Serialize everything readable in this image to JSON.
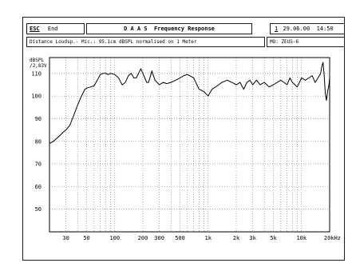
{
  "header": {
    "esc_key": "ESC",
    "end_label": "End",
    "title": "D A A S  Frequency Response",
    "date_marker": "1",
    "datetime": "29.06.00  14:50"
  },
  "info": {
    "description": "Distance Loudsp.- Mic.: 95.1cm dBSPL normalised on 1 Meter",
    "model": "MO: ZEUS-6"
  },
  "chart_data": {
    "type": "line",
    "title": "",
    "xlabel": "",
    "ylabel": "dBSPL /2,83V",
    "ylabel_lines": [
      "dBSPL",
      "/2,83V"
    ],
    "x_unit": "kHz",
    "x_scale": "log",
    "xlim": [
      20,
      20000
    ],
    "ylim": [
      40,
      117
    ],
    "grid": true,
    "y_ticks": [
      50,
      60,
      70,
      80,
      90,
      100,
      110
    ],
    "x_ticks": [
      {
        "value": 30,
        "label": "30"
      },
      {
        "value": 50,
        "label": "50"
      },
      {
        "value": 100,
        "label": "100"
      },
      {
        "value": 200,
        "label": "200"
      },
      {
        "value": 300,
        "label": "300"
      },
      {
        "value": 500,
        "label": "500"
      },
      {
        "value": 1000,
        "label": "1k"
      },
      {
        "value": 2000,
        "label": "2k"
      },
      {
        "value": 3000,
        "label": "3k"
      },
      {
        "value": 5000,
        "label": "5k"
      },
      {
        "value": 10000,
        "label": "10k"
      },
      {
        "value": 20000,
        "label": "20kHz"
      }
    ],
    "series": [
      {
        "x": [
          20,
          22,
          25,
          28,
          30,
          33,
          36,
          40,
          44,
          48,
          50,
          55,
          60,
          65,
          70,
          75,
          80,
          85,
          90,
          100,
          110,
          120,
          130,
          140,
          150,
          160,
          170,
          180,
          190,
          200,
          210,
          220,
          230,
          250,
          270,
          300,
          330,
          360,
          400,
          450,
          500,
          550,
          600,
          700,
          800,
          900,
          1000,
          1100,
          1200,
          1300,
          1400,
          1500,
          1600,
          1800,
          2000,
          2200,
          2400,
          2600,
          2800,
          3000,
          3300,
          3600,
          4000,
          4500,
          5000,
          5500,
          6000,
          6500,
          7000,
          7500,
          8000,
          9000,
          10000,
          11000,
          12000,
          13000,
          14000,
          15000,
          16000,
          16500,
          17000,
          17500,
          18000,
          18500,
          19000,
          19500,
          20000
        ],
        "y": [
          79,
          80,
          82,
          84,
          85,
          87,
          91,
          96,
          100,
          103,
          103.5,
          104,
          104.5,
          107,
          109.5,
          110,
          110,
          109.5,
          110,
          109.5,
          108,
          105,
          106,
          109,
          110,
          108,
          108,
          110,
          112,
          110,
          108,
          106,
          106,
          111,
          107,
          105,
          106,
          105.5,
          106,
          107,
          108,
          109,
          109.5,
          108,
          103,
          102,
          100,
          103,
          104,
          105,
          106,
          106.5,
          107,
          106,
          105,
          106,
          103,
          106,
          107,
          105,
          107,
          105,
          106,
          104,
          105,
          106,
          107,
          106,
          105,
          108,
          106,
          104,
          108,
          107,
          108,
          109,
          106,
          108,
          110,
          113,
          115,
          109,
          101,
          98,
          102,
          104,
          108
        ]
      }
    ]
  }
}
